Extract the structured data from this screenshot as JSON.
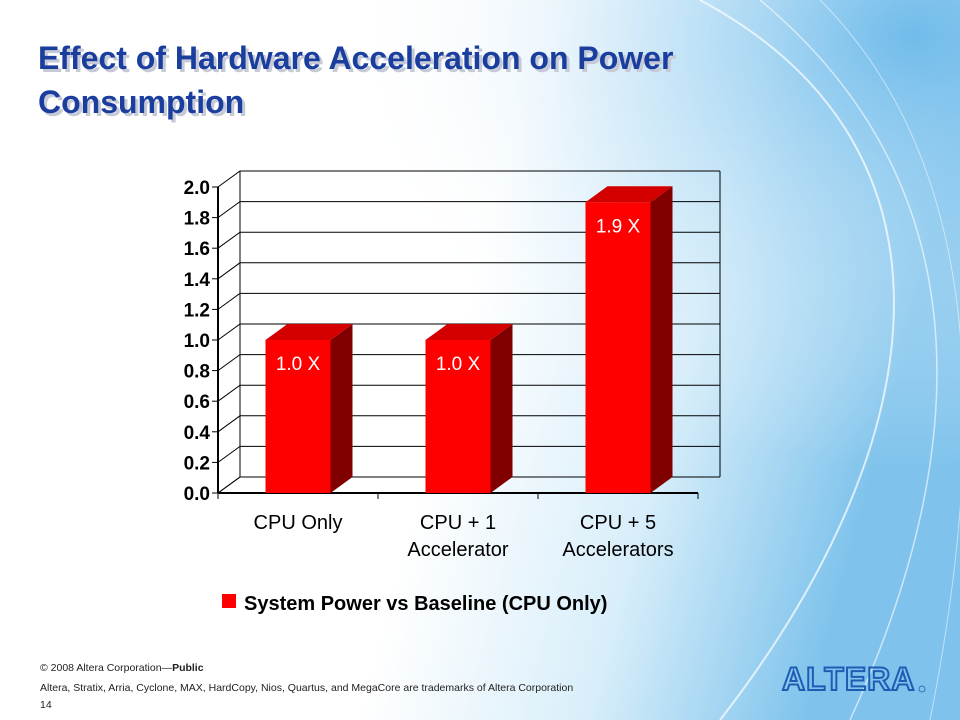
{
  "slide": {
    "title": "Effect of Hardware Acceleration on Power Consumption",
    "logo_text": "ALTERA",
    "footer": {
      "copyright": "© 2008 Altera Corporation—",
      "copyright_bold": "Public",
      "trademarks": "Altera, Stratix, Arria, Cyclone, MAX, HardCopy, Nios, Quartus, and MegaCore are trademarks of Altera Corporation",
      "page_number": "14"
    }
  },
  "colors": {
    "title": "#1a3e9e",
    "bar_front": "#ff0000",
    "bar_top": "#d40000",
    "bar_side": "#800000",
    "logo": "#1f5db5"
  },
  "chart_data": {
    "type": "bar",
    "categories": [
      [
        "CPU Only"
      ],
      [
        "CPU + 1",
        "Accelerator"
      ],
      [
        "CPU + 5",
        "Accelerators"
      ]
    ],
    "series": [
      {
        "name": "System Power vs Baseline (CPU Only)",
        "values": [
          1.0,
          1.0,
          1.9
        ]
      }
    ],
    "data_labels": [
      "1.0 X",
      "1.0 X",
      "1.9 X"
    ],
    "y_ticks": [
      "0.0",
      "0.2",
      "0.4",
      "0.6",
      "0.8",
      "1.0",
      "1.2",
      "1.4",
      "1.6",
      "1.8",
      "2.0"
    ],
    "ylim": [
      0,
      2.0
    ],
    "grid": true,
    "legend_position": "bottom",
    "style": "3d-bar"
  }
}
